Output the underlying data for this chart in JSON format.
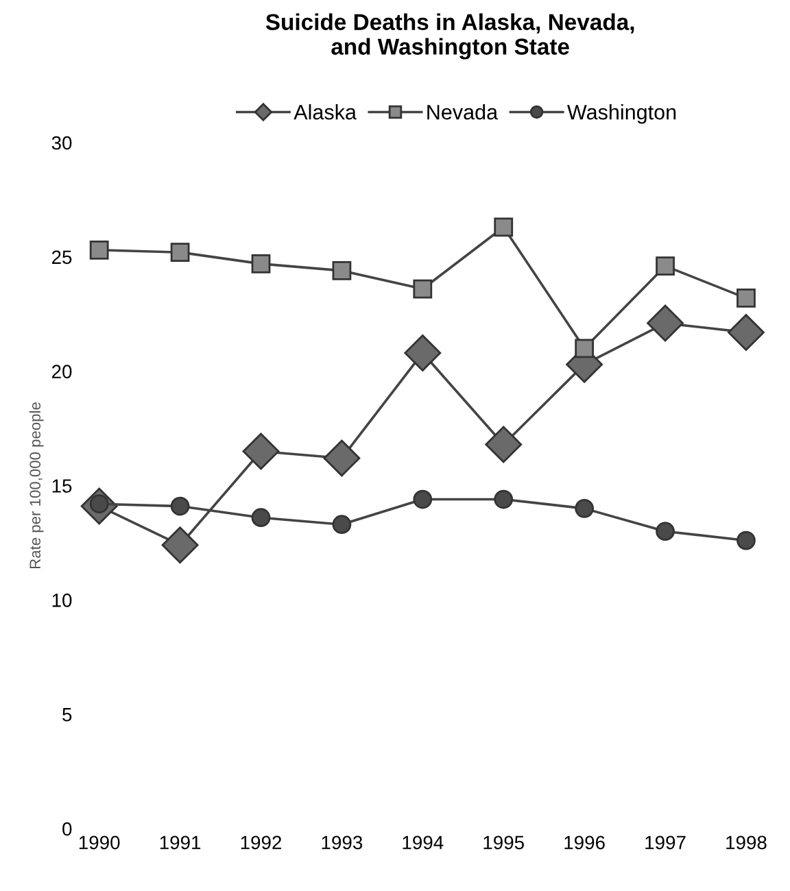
{
  "chart_data": {
    "type": "line",
    "title": "Suicide Deaths in Alaska, Nevada,\nand Washington State",
    "ylabel": "Rate per 100,000 people",
    "categories": [
      "1990",
      "1991",
      "1992",
      "1993",
      "1994",
      "1995",
      "1996",
      "1997",
      "1998"
    ],
    "ylim": [
      0,
      30
    ],
    "yticks": [
      0,
      5,
      10,
      15,
      20,
      25,
      30
    ],
    "grid": false,
    "legend": "top",
    "series": [
      {
        "name": "Alaska",
        "color": "#6a6a6a",
        "marker": "diamond",
        "values": [
          14.1,
          12.4,
          16.5,
          16.2,
          20.8,
          16.8,
          20.3,
          22.1,
          21.7
        ]
      },
      {
        "name": "Nevada",
        "color": "#8a8a8a",
        "marker": "square",
        "values": [
          25.3,
          25.2,
          24.7,
          24.4,
          23.6,
          26.3,
          21.0,
          24.6,
          23.2
        ]
      },
      {
        "name": "Washington",
        "color": "#4a4a4a",
        "marker": "circle",
        "values": [
          14.2,
          14.1,
          13.6,
          13.3,
          14.4,
          14.4,
          14.0,
          13.0,
          12.6
        ]
      }
    ]
  }
}
